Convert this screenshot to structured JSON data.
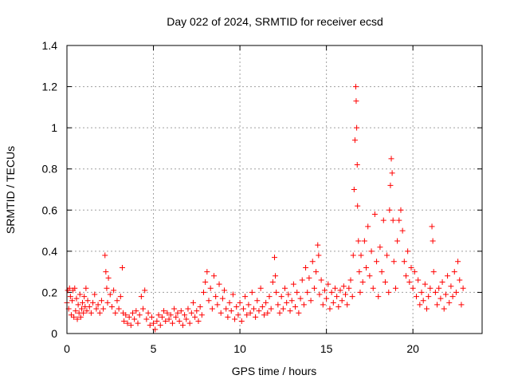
{
  "chart_data": {
    "type": "scatter",
    "title": "Day 022 of 2024, SRMTID for receiver ecsd",
    "xlabel": "GPS time / hours",
    "ylabel": "SRMTID / TECUs",
    "xlim": [
      0,
      24
    ],
    "ylim": [
      0,
      1.4
    ],
    "xticks": [
      0,
      5,
      10,
      15,
      20
    ],
    "xtick_labels": [
      "0",
      "5",
      "10",
      "15",
      "20"
    ],
    "yticks": [
      0,
      0.2,
      0.4,
      0.6,
      0.8,
      1,
      1.2,
      1.4
    ],
    "ytick_labels": [
      "0",
      "0.2",
      "0.4",
      "0.6",
      "0.8",
      "1",
      "1.2",
      "1.4"
    ],
    "grid": true,
    "marker": "plus",
    "color": "#ff0000",
    "series": [
      {
        "name": "SRMTID",
        "points": [
          [
            0.0,
            0.15
          ],
          [
            0.05,
            0.21
          ],
          [
            0.1,
            0.12
          ],
          [
            0.15,
            0.22
          ],
          [
            0.2,
            0.18
          ],
          [
            0.25,
            0.09
          ],
          [
            0.3,
            0.16
          ],
          [
            0.35,
            0.21
          ],
          [
            0.4,
            0.08
          ],
          [
            0.45,
            0.22
          ],
          [
            0.5,
            0.11
          ],
          [
            0.55,
            0.17
          ],
          [
            0.6,
            0.07
          ],
          [
            0.65,
            0.14
          ],
          [
            0.7,
            0.1
          ],
          [
            0.75,
            0.19
          ],
          [
            0.8,
            0.08
          ],
          [
            0.85,
            0.12
          ],
          [
            0.9,
            0.15
          ],
          [
            0.95,
            0.1
          ],
          [
            1.0,
            0.18
          ],
          [
            1.05,
            0.13
          ],
          [
            1.1,
            0.22
          ],
          [
            1.15,
            0.11
          ],
          [
            1.2,
            0.16
          ],
          [
            1.3,
            0.13
          ],
          [
            1.4,
            0.1
          ],
          [
            1.5,
            0.15
          ],
          [
            1.6,
            0.19
          ],
          [
            1.7,
            0.12
          ],
          [
            1.8,
            0.14
          ],
          [
            1.9,
            0.1
          ],
          [
            2.0,
            0.16
          ],
          [
            2.1,
            0.12
          ],
          [
            2.2,
            0.38
          ],
          [
            2.25,
            0.3
          ],
          [
            2.3,
            0.22
          ],
          [
            2.35,
            0.15
          ],
          [
            2.4,
            0.27
          ],
          [
            2.5,
            0.19
          ],
          [
            2.6,
            0.13
          ],
          [
            2.7,
            0.21
          ],
          [
            2.8,
            0.1
          ],
          [
            2.9,
            0.16
          ],
          [
            3.0,
            0.12
          ],
          [
            3.1,
            0.18
          ],
          [
            3.2,
            0.32
          ],
          [
            3.25,
            0.1
          ],
          [
            3.3,
            0.06
          ],
          [
            3.4,
            0.09
          ],
          [
            3.5,
            0.05
          ],
          [
            3.6,
            0.08
          ],
          [
            3.7,
            0.04
          ],
          [
            3.8,
            0.1
          ],
          [
            3.9,
            0.07
          ],
          [
            4.0,
            0.11
          ],
          [
            4.1,
            0.05
          ],
          [
            4.2,
            0.09
          ],
          [
            4.3,
            0.18
          ],
          [
            4.4,
            0.12
          ],
          [
            4.5,
            0.21
          ],
          [
            4.6,
            0.07
          ],
          [
            4.7,
            0.1
          ],
          [
            4.8,
            0.04
          ],
          [
            4.9,
            0.08
          ],
          [
            5.0,
            0.05
          ],
          [
            5.1,
            0.02
          ],
          [
            5.2,
            0.06
          ],
          [
            5.3,
            0.09
          ],
          [
            5.4,
            0.04
          ],
          [
            5.5,
            0.08
          ],
          [
            5.6,
            0.11
          ],
          [
            5.7,
            0.06
          ],
          [
            5.8,
            0.1
          ],
          [
            5.9,
            0.07
          ],
          [
            6.0,
            0.09
          ],
          [
            6.1,
            0.05
          ],
          [
            6.2,
            0.12
          ],
          [
            6.3,
            0.08
          ],
          [
            6.4,
            0.1
          ],
          [
            6.5,
            0.06
          ],
          [
            6.6,
            0.11
          ],
          [
            6.7,
            0.04
          ],
          [
            6.8,
            0.09
          ],
          [
            6.9,
            0.07
          ],
          [
            7.0,
            0.12
          ],
          [
            7.1,
            0.05
          ],
          [
            7.2,
            0.1
          ],
          [
            7.3,
            0.15
          ],
          [
            7.4,
            0.08
          ],
          [
            7.5,
            0.11
          ],
          [
            7.6,
            0.06
          ],
          [
            7.7,
            0.13
          ],
          [
            7.8,
            0.09
          ],
          [
            7.9,
            0.2
          ],
          [
            8.0,
            0.25
          ],
          [
            8.1,
            0.3
          ],
          [
            8.2,
            0.16
          ],
          [
            8.3,
            0.22
          ],
          [
            8.4,
            0.12
          ],
          [
            8.5,
            0.28
          ],
          [
            8.6,
            0.18
          ],
          [
            8.7,
            0.14
          ],
          [
            8.8,
            0.24
          ],
          [
            8.9,
            0.1
          ],
          [
            9.0,
            0.17
          ],
          [
            9.1,
            0.21
          ],
          [
            9.2,
            0.12
          ],
          [
            9.3,
            0.08
          ],
          [
            9.4,
            0.15
          ],
          [
            9.5,
            0.11
          ],
          [
            9.6,
            0.19
          ],
          [
            9.7,
            0.07
          ],
          [
            9.8,
            0.13
          ],
          [
            9.9,
            0.09
          ],
          [
            10.0,
            0.15
          ],
          [
            10.1,
            0.06
          ],
          [
            10.2,
            0.12
          ],
          [
            10.3,
            0.18
          ],
          [
            10.4,
            0.09
          ],
          [
            10.5,
            0.14
          ],
          [
            10.6,
            0.1
          ],
          [
            10.7,
            0.2
          ],
          [
            10.8,
            0.12
          ],
          [
            10.9,
            0.08
          ],
          [
            11.0,
            0.16
          ],
          [
            11.1,
            0.11
          ],
          [
            11.2,
            0.22
          ],
          [
            11.3,
            0.13
          ],
          [
            11.4,
            0.09
          ],
          [
            11.5,
            0.15
          ],
          [
            11.6,
            0.1
          ],
          [
            11.7,
            0.18
          ],
          [
            11.8,
            0.12
          ],
          [
            11.9,
            0.25
          ],
          [
            12.0,
            0.37
          ],
          [
            12.05,
            0.28
          ],
          [
            12.1,
            0.2
          ],
          [
            12.2,
            0.14
          ],
          [
            12.3,
            0.1
          ],
          [
            12.4,
            0.18
          ],
          [
            12.5,
            0.12
          ],
          [
            12.6,
            0.22
          ],
          [
            12.7,
            0.15
          ],
          [
            12.8,
            0.19
          ],
          [
            12.9,
            0.11
          ],
          [
            13.0,
            0.16
          ],
          [
            13.1,
            0.24
          ],
          [
            13.2,
            0.13
          ],
          [
            13.3,
            0.2
          ],
          [
            13.4,
            0.1
          ],
          [
            13.5,
            0.17
          ],
          [
            13.6,
            0.26
          ],
          [
            13.7,
            0.14
          ],
          [
            13.8,
            0.32
          ],
          [
            13.9,
            0.2
          ],
          [
            14.0,
            0.27
          ],
          [
            14.1,
            0.16
          ],
          [
            14.2,
            0.35
          ],
          [
            14.3,
            0.22
          ],
          [
            14.4,
            0.3
          ],
          [
            14.5,
            0.43
          ],
          [
            14.55,
            0.38
          ],
          [
            14.6,
            0.19
          ],
          [
            14.7,
            0.26
          ],
          [
            14.8,
            0.14
          ],
          [
            14.9,
            0.21
          ],
          [
            15.0,
            0.17
          ],
          [
            15.1,
            0.24
          ],
          [
            15.2,
            0.12
          ],
          [
            15.3,
            0.2
          ],
          [
            15.4,
            0.15
          ],
          [
            15.5,
            0.22
          ],
          [
            15.6,
            0.18
          ],
          [
            15.7,
            0.13
          ],
          [
            15.8,
            0.21
          ],
          [
            15.9,
            0.16
          ],
          [
            16.0,
            0.23
          ],
          [
            16.1,
            0.19
          ],
          [
            16.2,
            0.14
          ],
          [
            16.3,
            0.22
          ],
          [
            16.4,
            0.26
          ],
          [
            16.5,
            0.18
          ],
          [
            16.55,
            0.38
          ],
          [
            16.6,
            0.7
          ],
          [
            16.65,
            0.94
          ],
          [
            16.7,
            1.2
          ],
          [
            16.72,
            1.13
          ],
          [
            16.75,
            1.0
          ],
          [
            16.78,
            0.82
          ],
          [
            16.8,
            0.62
          ],
          [
            16.85,
            0.45
          ],
          [
            16.9,
            0.3
          ],
          [
            16.95,
            0.2
          ],
          [
            17.0,
            0.38
          ],
          [
            17.1,
            0.25
          ],
          [
            17.2,
            0.45
          ],
          [
            17.3,
            0.32
          ],
          [
            17.4,
            0.52
          ],
          [
            17.5,
            0.28
          ],
          [
            17.6,
            0.4
          ],
          [
            17.7,
            0.22
          ],
          [
            17.8,
            0.58
          ],
          [
            17.9,
            0.35
          ],
          [
            18.0,
            0.18
          ],
          [
            18.1,
            0.42
          ],
          [
            18.2,
            0.3
          ],
          [
            18.3,
            0.55
          ],
          [
            18.4,
            0.25
          ],
          [
            18.5,
            0.38
          ],
          [
            18.6,
            0.2
          ],
          [
            18.65,
            0.6
          ],
          [
            18.7,
            0.72
          ],
          [
            18.75,
            0.85
          ],
          [
            18.8,
            0.78
          ],
          [
            18.85,
            0.55
          ],
          [
            18.9,
            0.35
          ],
          [
            19.0,
            0.22
          ],
          [
            19.1,
            0.45
          ],
          [
            19.2,
            0.55
          ],
          [
            19.3,
            0.6
          ],
          [
            19.4,
            0.5
          ],
          [
            19.5,
            0.35
          ],
          [
            19.6,
            0.28
          ],
          [
            19.7,
            0.4
          ],
          [
            19.8,
            0.25
          ],
          [
            19.9,
            0.32
          ],
          [
            20.0,
            0.22
          ],
          [
            20.1,
            0.3
          ],
          [
            20.2,
            0.18
          ],
          [
            20.3,
            0.26
          ],
          [
            20.4,
            0.14
          ],
          [
            20.5,
            0.2
          ],
          [
            20.6,
            0.16
          ],
          [
            20.7,
            0.24
          ],
          [
            20.8,
            0.12
          ],
          [
            20.9,
            0.18
          ],
          [
            21.0,
            0.22
          ],
          [
            21.1,
            0.52
          ],
          [
            21.15,
            0.45
          ],
          [
            21.2,
            0.3
          ],
          [
            21.3,
            0.2
          ],
          [
            21.4,
            0.14
          ],
          [
            21.5,
            0.22
          ],
          [
            21.6,
            0.17
          ],
          [
            21.7,
            0.25
          ],
          [
            21.8,
            0.12
          ],
          [
            21.9,
            0.19
          ],
          [
            22.0,
            0.28
          ],
          [
            22.1,
            0.15
          ],
          [
            22.2,
            0.23
          ],
          [
            22.3,
            0.18
          ],
          [
            22.4,
            0.3
          ],
          [
            22.5,
            0.2
          ],
          [
            22.6,
            0.35
          ],
          [
            22.7,
            0.26
          ],
          [
            22.8,
            0.14
          ],
          [
            22.9,
            0.22
          ]
        ]
      }
    ]
  }
}
